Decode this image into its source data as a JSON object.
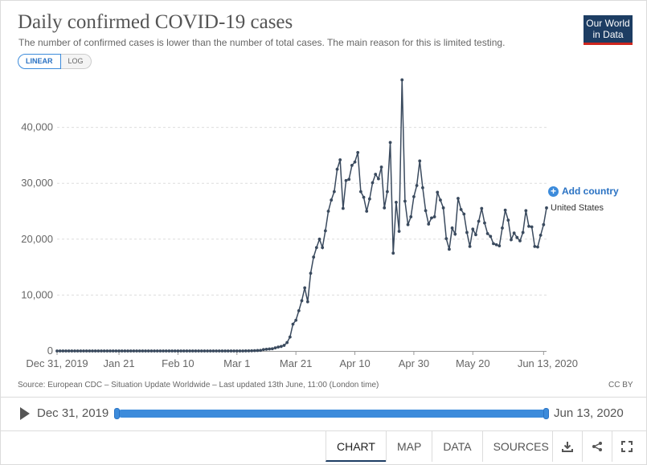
{
  "header": {
    "title": "Daily confirmed COVID-19 cases",
    "subtitle": "The number of confirmed cases is lower than the number of total cases. The main reason for this is limited testing.",
    "logo_line1": "Our World",
    "logo_line2": "in Data"
  },
  "scale_toggle": {
    "linear_label": "LINEAR",
    "log_label": "LOG"
  },
  "legend": {
    "add_country_label": "Add country",
    "series_label": "United States"
  },
  "footer": {
    "source": "Source: European CDC – Situation Update Worldwide – Last updated 13th June, 11:00 (London time)",
    "license": "CC BY"
  },
  "timeline": {
    "start_label": "Dec 31, 2019",
    "end_label": "Jun 13, 2020"
  },
  "tabs": [
    "CHART",
    "MAP",
    "DATA",
    "SOURCES"
  ],
  "colors": {
    "line": "#3a4a5e",
    "accent": "#3c8bdb",
    "brand": "#1d3d63",
    "brand_red": "#ce261e"
  },
  "chart_data": {
    "type": "line",
    "title": "Daily confirmed COVID-19 cases",
    "xlabel": "",
    "ylabel": "",
    "ylim": [
      0,
      50000
    ],
    "start_date": "2019-12-31",
    "end_date": "2020-06-13",
    "x_ticks": [
      {
        "day": 0,
        "label": "Dec 31, 2019"
      },
      {
        "day": 21,
        "label": "Jan 21"
      },
      {
        "day": 41,
        "label": "Feb 10"
      },
      {
        "day": 61,
        "label": "Mar 1"
      },
      {
        "day": 81,
        "label": "Mar 21"
      },
      {
        "day": 101,
        "label": "Apr 10"
      },
      {
        "day": 121,
        "label": "Apr 30"
      },
      {
        "day": 141,
        "label": "May 20"
      },
      {
        "day": 165,
        "label": "Jun 13, 2020"
      }
    ],
    "y_ticks": [
      0,
      10000,
      20000,
      30000,
      40000
    ],
    "series": [
      {
        "name": "United States",
        "values": [
          0,
          0,
          0,
          0,
          0,
          0,
          0,
          0,
          0,
          0,
          0,
          0,
          0,
          0,
          0,
          0,
          0,
          0,
          0,
          0,
          0,
          0,
          0,
          0,
          0,
          0,
          0,
          0,
          0,
          0,
          0,
          0,
          0,
          0,
          0,
          0,
          0,
          0,
          0,
          0,
          0,
          0,
          0,
          0,
          0,
          0,
          0,
          0,
          0,
          0,
          0,
          0,
          0,
          0,
          0,
          0,
          0,
          0,
          0,
          0,
          0,
          0,
          0,
          0,
          10,
          20,
          30,
          50,
          80,
          100,
          250,
          300,
          350,
          400,
          550,
          700,
          800,
          1000,
          1500,
          2500,
          4800,
          5500,
          7200,
          9000,
          11300,
          8800,
          13900,
          16800,
          18500,
          20000,
          18500,
          21500,
          25000,
          27000,
          28500,
          32500,
          34200,
          25500,
          30500,
          30700,
          33200,
          33800,
          35500,
          28500,
          27500,
          25000,
          27200,
          30100,
          31600,
          30800,
          32900,
          25600,
          28500,
          37300,
          17500,
          26600,
          21400,
          48500,
          26800,
          22600,
          24000,
          27600,
          29600,
          34000,
          29200,
          25100,
          22700,
          23800,
          24000,
          28400,
          27000,
          25600,
          20100,
          18200,
          22000,
          20900,
          27300,
          25300,
          24500,
          21200,
          18700,
          21800,
          20800,
          23200,
          25500,
          22900,
          21000,
          20500,
          19200,
          19000,
          18800,
          22000,
          25200,
          23400,
          19900,
          21100,
          20300,
          19700,
          21200,
          25100,
          22300,
          22200,
          18700,
          18600,
          20700,
          22600,
          25600
        ]
      }
    ]
  }
}
